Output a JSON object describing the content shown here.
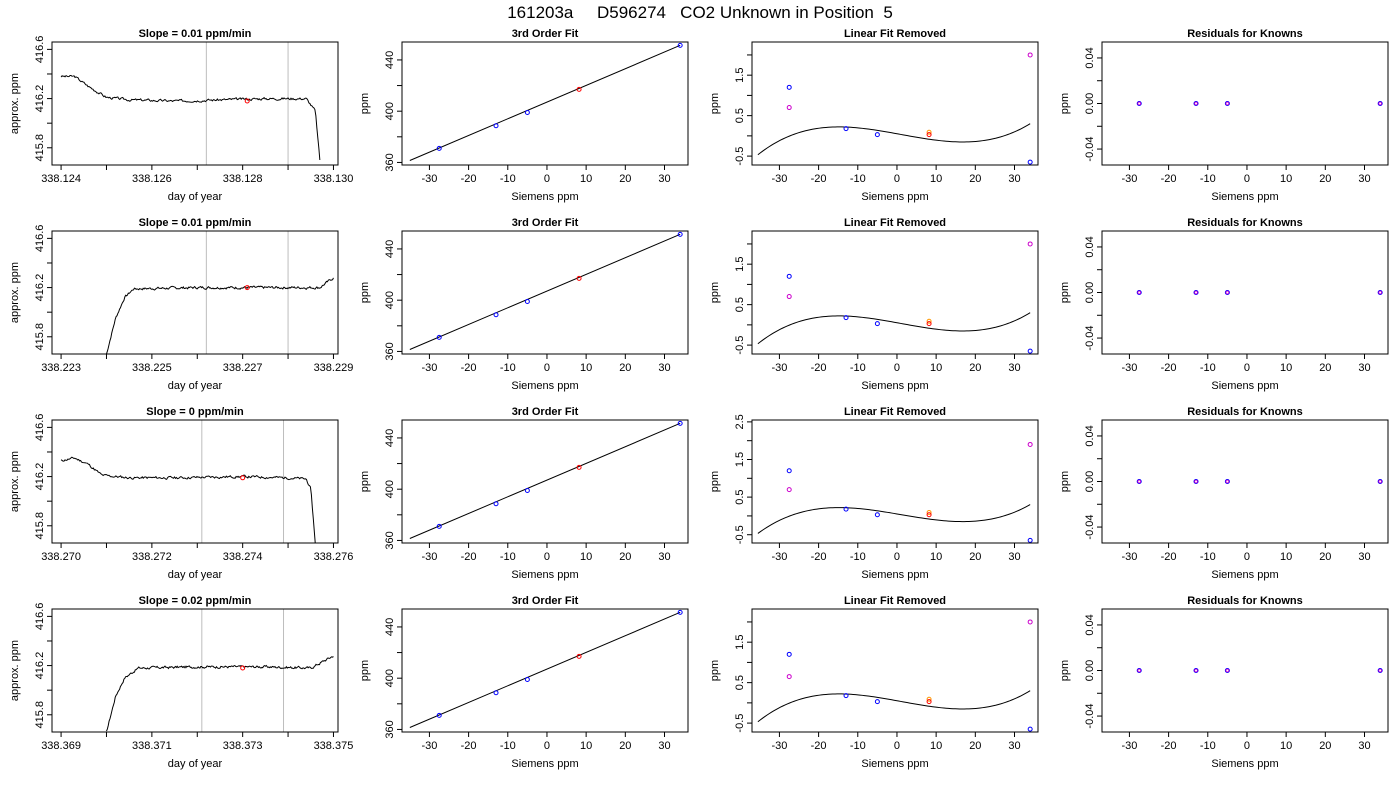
{
  "figure_title": "161203a     D596274   CO2 Unknown in Position  5",
  "colors": {
    "trace": "#000000",
    "window": "#bdbdbd",
    "point_unknown": "#ff0000",
    "point_known": "#0000ff",
    "point_raw": "#cc00cc",
    "point_orange": "#ff9900"
  },
  "chart_data": [
    {
      "type": "line",
      "row": 0,
      "col": 0,
      "title": "Slope =  0.01  ppm/min",
      "xlabel": "day of year",
      "ylabel": "approx. ppm",
      "xlim": [
        338.1238,
        338.1301
      ],
      "ylim": [
        415.66,
        416.66
      ],
      "xticks": [
        338.124,
        338.126,
        338.128,
        338.13
      ],
      "xticks_minor": [
        338.125,
        338.127,
        338.129
      ],
      "yticks": [
        415.8,
        416.2,
        416.6
      ],
      "yticks_minor": [
        416.0,
        416.4
      ],
      "window": [
        338.1272,
        338.129
      ],
      "unknown_point": [
        338.1281,
        416.18
      ],
      "trace": {
        "start_x": 338.124,
        "end_x": 338.1297,
        "levels": [
          [
            338.124,
            416.38
          ],
          [
            338.1243,
            416.38
          ],
          [
            338.1246,
            416.3
          ],
          [
            338.125,
            416.21
          ],
          [
            338.1255,
            416.19
          ],
          [
            338.1265,
            416.18
          ],
          [
            338.1275,
            416.19
          ],
          [
            338.1285,
            416.2
          ],
          [
            338.1294,
            416.2
          ],
          [
            338.1296,
            416.1
          ],
          [
            338.1297,
            415.7
          ]
        ],
        "seed": 3
      }
    },
    {
      "type": "line",
      "row": 1,
      "col": 0,
      "title": "Slope =  0.01  ppm/min",
      "xlabel": "day of year",
      "ylabel": "approx. ppm",
      "xlim": [
        338.2228,
        338.2291
      ],
      "ylim": [
        415.66,
        416.66
      ],
      "xticks": [
        338.223,
        338.225,
        338.227,
        338.229
      ],
      "xticks_minor": [
        338.224,
        338.226,
        338.228
      ],
      "yticks": [
        415.8,
        416.2,
        416.6
      ],
      "yticks_minor": [
        416.0,
        416.4
      ],
      "window": [
        338.2262,
        338.228
      ],
      "unknown_point": [
        338.2271,
        416.2
      ],
      "trace": {
        "start_x": 338.224,
        "end_x": 338.229,
        "levels": [
          [
            338.224,
            415.66
          ],
          [
            338.2242,
            415.95
          ],
          [
            338.2244,
            416.12
          ],
          [
            338.2246,
            416.19
          ],
          [
            338.226,
            416.2
          ],
          [
            338.2275,
            416.2
          ],
          [
            338.2287,
            416.2
          ],
          [
            338.229,
            416.28
          ]
        ],
        "seed": 7
      }
    },
    {
      "type": "line",
      "row": 2,
      "col": 0,
      "title": "Slope =  0  ppm/min",
      "xlabel": "day of year",
      "ylabel": "approx. ppm",
      "xlim": [
        338.2698,
        338.2761
      ],
      "ylim": [
        415.66,
        416.66
      ],
      "xticks": [
        338.27,
        338.272,
        338.274,
        338.276
      ],
      "xticks_minor": [
        338.271,
        338.273,
        338.275
      ],
      "yticks": [
        415.8,
        416.2,
        416.6
      ],
      "yticks_minor": [
        416.0,
        416.4
      ],
      "window": [
        338.2731,
        338.2749
      ],
      "unknown_point": [
        338.274,
        416.19
      ],
      "trace": {
        "start_x": 338.27,
        "end_x": 338.2756,
        "levels": [
          [
            338.27,
            416.33
          ],
          [
            338.2703,
            416.35
          ],
          [
            338.2706,
            416.3
          ],
          [
            338.2709,
            416.21
          ],
          [
            338.2715,
            416.19
          ],
          [
            338.2725,
            416.19
          ],
          [
            338.274,
            416.2
          ],
          [
            338.275,
            416.19
          ],
          [
            338.2754,
            416.18
          ],
          [
            338.2755,
            416.1
          ],
          [
            338.2756,
            415.66
          ]
        ],
        "seed": 11
      }
    },
    {
      "type": "line",
      "row": 3,
      "col": 0,
      "title": "Slope =  0.02  ppm/min",
      "xlabel": "day of year",
      "ylabel": "approx. ppm",
      "xlim": [
        338.3688,
        338.3751
      ],
      "ylim": [
        415.66,
        416.66
      ],
      "xticks": [
        338.369,
        338.371,
        338.373,
        338.375
      ],
      "xticks_minor": [
        338.37,
        338.372,
        338.374
      ],
      "yticks": [
        415.8,
        416.2,
        416.6
      ],
      "yticks_minor": [
        416.0,
        416.4
      ],
      "window": [
        338.3721,
        338.3739
      ],
      "unknown_point": [
        338.373,
        416.18
      ],
      "trace": {
        "start_x": 338.37,
        "end_x": 338.375,
        "levels": [
          [
            338.37,
            415.66
          ],
          [
            338.3702,
            415.95
          ],
          [
            338.3704,
            416.1
          ],
          [
            338.3707,
            416.18
          ],
          [
            338.372,
            416.19
          ],
          [
            338.3735,
            416.19
          ],
          [
            338.3745,
            416.18
          ],
          [
            338.375,
            416.28
          ]
        ],
        "seed": 17
      }
    },
    {
      "type": "scatter",
      "row": 0,
      "col": 1,
      "title": "3rd Order Fit",
      "xlabel": "Siemens ppm",
      "ylabel": "ppm",
      "xlim": [
        -37,
        36
      ],
      "ylim": [
        358,
        454
      ],
      "xticks": [
        -30,
        -20,
        -10,
        0,
        10,
        20,
        30
      ],
      "yticks": [
        360,
        400,
        440
      ],
      "yticks_minor": [
        380,
        420
      ],
      "fit_line": [
        [
          -35,
          361.5
        ],
        [
          34,
          451.4
        ]
      ],
      "points_known": [
        [
          -27.5,
          371.0
        ],
        [
          -13.0,
          388.6
        ],
        [
          -5.0,
          399.0
        ],
        [
          34.0,
          451.4
        ]
      ],
      "points_unknown": [
        [
          8.2,
          417.0
        ]
      ]
    },
    {
      "type": "scatter",
      "row": 1,
      "col": 1,
      "title": "3rd Order Fit",
      "xlabel": "Siemens ppm",
      "ylabel": "ppm",
      "xlim": [
        -37,
        36
      ],
      "ylim": [
        358,
        454
      ],
      "xticks": [
        -30,
        -20,
        -10,
        0,
        10,
        20,
        30
      ],
      "yticks": [
        360,
        400,
        440
      ],
      "yticks_minor": [
        380,
        420
      ],
      "fit_line": [
        [
          -35,
          361.5
        ],
        [
          34,
          451.4
        ]
      ],
      "points_known": [
        [
          -27.5,
          371.0
        ],
        [
          -13.0,
          388.6
        ],
        [
          -5.0,
          399.0
        ],
        [
          34.0,
          451.4
        ]
      ],
      "points_unknown": [
        [
          8.2,
          417.0
        ]
      ]
    },
    {
      "type": "scatter",
      "row": 2,
      "col": 1,
      "title": "3rd Order Fit",
      "xlabel": "Siemens ppm",
      "ylabel": "ppm",
      "xlim": [
        -37,
        36
      ],
      "ylim": [
        358,
        454
      ],
      "xticks": [
        -30,
        -20,
        -10,
        0,
        10,
        20,
        30
      ],
      "yticks": [
        360,
        400,
        440
      ],
      "yticks_minor": [
        380,
        420
      ],
      "fit_line": [
        [
          -35,
          361.5
        ],
        [
          34,
          451.4
        ]
      ],
      "points_known": [
        [
          -27.5,
          371.0
        ],
        [
          -13.0,
          388.6
        ],
        [
          -5.0,
          399.0
        ],
        [
          34.0,
          451.4
        ]
      ],
      "points_unknown": [
        [
          8.2,
          417.0
        ]
      ]
    },
    {
      "type": "scatter",
      "row": 3,
      "col": 1,
      "title": "3rd Order Fit",
      "xlabel": "Siemens ppm",
      "ylabel": "ppm",
      "xlim": [
        -37,
        36
      ],
      "ylim": [
        358,
        454
      ],
      "xticks": [
        -30,
        -20,
        -10,
        0,
        10,
        20,
        30
      ],
      "yticks": [
        360,
        400,
        440
      ],
      "yticks_minor": [
        380,
        420
      ],
      "fit_line": [
        [
          -35,
          361.5
        ],
        [
          34,
          451.4
        ]
      ],
      "points_known": [
        [
          -27.5,
          371.0
        ],
        [
          -13.0,
          388.6
        ],
        [
          -5.0,
          399.0
        ],
        [
          34.0,
          451.4
        ]
      ],
      "points_unknown": [
        [
          8.2,
          417.0
        ]
      ]
    },
    {
      "type": "scatter",
      "row": 0,
      "col": 2,
      "title": "Linear Fit Removed",
      "xlabel": "Siemens ppm",
      "ylabel": "ppm",
      "xlim": [
        -37,
        36
      ],
      "ylim": [
        -0.72,
        2.32
      ],
      "xticks": [
        -30,
        -20,
        -10,
        0,
        10,
        20,
        30
      ],
      "yticks": [
        -0.5,
        0.5,
        1.5
      ],
      "yticks_minor": [
        0.0,
        1.0,
        2.0
      ],
      "curve": {
        "x_from": -35.5,
        "x_to": 34,
        "poly": [
          0.0528,
          -0.0176,
          -7e-05,
          2.36e-05
        ]
      },
      "points_known": [
        [
          -27.5,
          1.2
        ],
        [
          -13.0,
          0.18
        ],
        [
          -5.0,
          0.03
        ],
        [
          34.0,
          -0.65
        ]
      ],
      "points_raw": [
        [
          -27.5,
          0.7
        ],
        [
          34.0,
          2.0
        ]
      ],
      "points_orange": [
        [
          8.2,
          0.09
        ]
      ],
      "points_unknown": [
        [
          8.2,
          0.03
        ]
      ]
    },
    {
      "type": "scatter",
      "row": 1,
      "col": 2,
      "title": "Linear Fit Removed",
      "xlabel": "Siemens ppm",
      "ylabel": "ppm",
      "xlim": [
        -37,
        36
      ],
      "ylim": [
        -0.72,
        2.32
      ],
      "xticks": [
        -30,
        -20,
        -10,
        0,
        10,
        20,
        30
      ],
      "yticks": [
        -0.5,
        0.5,
        1.5
      ],
      "yticks_minor": [
        0.0,
        1.0,
        2.0
      ],
      "curve": {
        "x_from": -35.5,
        "x_to": 34,
        "poly": [
          0.0528,
          -0.0176,
          -7e-05,
          2.36e-05
        ]
      },
      "points_known": [
        [
          -27.5,
          1.2
        ],
        [
          -13.0,
          0.18
        ],
        [
          -5.0,
          0.03
        ],
        [
          34.0,
          -0.65
        ]
      ],
      "points_raw": [
        [
          -27.5,
          0.7
        ],
        [
          34.0,
          2.0
        ]
      ],
      "points_orange": [
        [
          8.2,
          0.09
        ]
      ],
      "points_unknown": [
        [
          8.2,
          0.03
        ]
      ]
    },
    {
      "type": "scatter",
      "row": 2,
      "col": 2,
      "title": "Linear Fit Removed",
      "xlabel": "Siemens ppm",
      "ylabel": "ppm",
      "xlim": [
        -37,
        36
      ],
      "ylim": [
        -0.72,
        2.55
      ],
      "xticks": [
        -30,
        -20,
        -10,
        0,
        10,
        20,
        30
      ],
      "yticks": [
        -0.5,
        0.5,
        1.5,
        2.5
      ],
      "yticks_minor": [
        0.0,
        1.0,
        2.0
      ],
      "curve": {
        "x_from": -35.5,
        "x_to": 34,
        "poly": [
          0.0528,
          -0.0176,
          -7e-05,
          2.36e-05
        ]
      },
      "points_known": [
        [
          -27.5,
          1.2
        ],
        [
          -13.0,
          0.18
        ],
        [
          -5.0,
          0.03
        ],
        [
          34.0,
          -0.65
        ]
      ],
      "points_raw": [
        [
          -27.5,
          0.7
        ],
        [
          34.0,
          1.9
        ]
      ],
      "points_orange": [
        [
          8.2,
          0.09
        ]
      ],
      "points_unknown": [
        [
          8.2,
          0.03
        ]
      ]
    },
    {
      "type": "scatter",
      "row": 3,
      "col": 2,
      "title": "Linear Fit Removed",
      "xlabel": "Siemens ppm",
      "ylabel": "ppm",
      "xlim": [
        -37,
        36
      ],
      "ylim": [
        -0.72,
        2.32
      ],
      "xticks": [
        -30,
        -20,
        -10,
        0,
        10,
        20,
        30
      ],
      "yticks": [
        -0.5,
        0.5,
        1.5
      ],
      "yticks_minor": [
        0.0,
        1.0,
        2.0
      ],
      "curve": {
        "x_from": -35.5,
        "x_to": 34,
        "poly": [
          0.0528,
          -0.0176,
          -7e-05,
          2.36e-05
        ]
      },
      "points_known": [
        [
          -27.5,
          1.2
        ],
        [
          -13.0,
          0.18
        ],
        [
          -5.0,
          0.03
        ],
        [
          34.0,
          -0.65
        ]
      ],
      "points_raw": [
        [
          -27.5,
          0.65
        ],
        [
          34.0,
          2.0
        ]
      ],
      "points_orange": [
        [
          8.2,
          0.09
        ]
      ],
      "points_unknown": [
        [
          8.2,
          0.03
        ]
      ]
    },
    {
      "type": "scatter",
      "row": 0,
      "col": 3,
      "title": "Residuals for Knowns",
      "xlabel": "Siemens ppm",
      "ylabel": "ppm",
      "xlim": [
        -37,
        36
      ],
      "ylim": [
        -0.054,
        0.054
      ],
      "xticks": [
        -30,
        -20,
        -10,
        0,
        10,
        20,
        30
      ],
      "yticks": [
        -0.04,
        0.0,
        0.04
      ],
      "ytick_labels": [
        "-0.04",
        "0.00",
        "0.04"
      ],
      "yticks_minor": [
        -0.02,
        0.02
      ],
      "points_known": [
        [
          -27.5,
          0.0
        ],
        [
          -13.0,
          0.0
        ],
        [
          -5.0,
          0.0
        ],
        [
          34.0,
          0.0
        ]
      ]
    },
    {
      "type": "scatter",
      "row": 1,
      "col": 3,
      "title": "Residuals for Knowns",
      "xlabel": "Siemens ppm",
      "ylabel": "ppm",
      "xlim": [
        -37,
        36
      ],
      "ylim": [
        -0.054,
        0.054
      ],
      "xticks": [
        -30,
        -20,
        -10,
        0,
        10,
        20,
        30
      ],
      "yticks": [
        -0.04,
        0.0,
        0.04
      ],
      "ytick_labels": [
        "-0.04",
        "0.00",
        "0.04"
      ],
      "yticks_minor": [
        -0.02,
        0.02
      ],
      "points_known": [
        [
          -27.5,
          0.0
        ],
        [
          -13.0,
          0.0
        ],
        [
          -5.0,
          0.0
        ],
        [
          34.0,
          0.0
        ]
      ]
    },
    {
      "type": "scatter",
      "row": 2,
      "col": 3,
      "title": "Residuals for Knowns",
      "xlabel": "Siemens ppm",
      "ylabel": "ppm",
      "xlim": [
        -37,
        36
      ],
      "ylim": [
        -0.054,
        0.054
      ],
      "xticks": [
        -30,
        -20,
        -10,
        0,
        10,
        20,
        30
      ],
      "yticks": [
        -0.04,
        0.0,
        0.04
      ],
      "ytick_labels": [
        "-0.04",
        "0.00",
        "0.04"
      ],
      "yticks_minor": [
        -0.02,
        0.02
      ],
      "points_known": [
        [
          -27.5,
          0.0
        ],
        [
          -13.0,
          0.0
        ],
        [
          -5.0,
          0.0
        ],
        [
          34.0,
          0.0
        ]
      ]
    },
    {
      "type": "scatter",
      "row": 3,
      "col": 3,
      "title": "Residuals for Knowns",
      "xlabel": "Siemens ppm",
      "ylabel": "ppm",
      "xlim": [
        -37,
        36
      ],
      "ylim": [
        -0.054,
        0.054
      ],
      "xticks": [
        -30,
        -20,
        -10,
        0,
        10,
        20,
        30
      ],
      "yticks": [
        -0.04,
        0.0,
        0.04
      ],
      "ytick_labels": [
        "-0.04",
        "0.00",
        "0.04"
      ],
      "yticks_minor": [
        -0.02,
        0.02
      ],
      "points_known": [
        [
          -27.5,
          0.0
        ],
        [
          -13.0,
          0.0
        ],
        [
          -5.0,
          0.0
        ],
        [
          34.0,
          0.0
        ]
      ]
    }
  ]
}
